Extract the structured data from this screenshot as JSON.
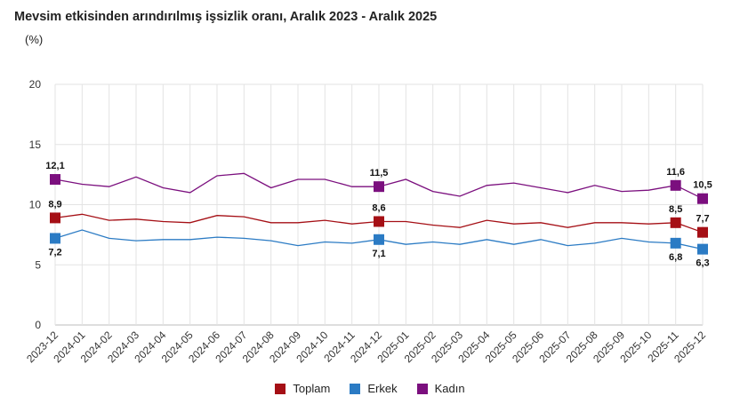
{
  "header": {
    "title": "Mevsim etkisinden arındırılmış işsizlik oranı, Aralık 2023 - Aralık 2025",
    "unit": "(%)"
  },
  "chart_data": {
    "type": "line",
    "title": "Mevsim etkisinden arındırılmış işsizlik oranı, Aralık 2023 - Aralık 2025",
    "ylabel": "(%)",
    "xlabel": "",
    "ylim": [
      0,
      20
    ],
    "yticks": [
      0,
      5,
      10,
      15,
      20
    ],
    "categories": [
      "2023-12",
      "2024-01",
      "2024-02",
      "2024-03",
      "2024-04",
      "2024-05",
      "2024-06",
      "2024-07",
      "2024-08",
      "2024-09",
      "2024-10",
      "2024-11",
      "2024-12",
      "2025-01",
      "2025-02",
      "2025-03",
      "2025-04",
      "2025-05",
      "2025-06",
      "2025-07",
      "2025-08",
      "2025-09",
      "2025-10",
      "2025-11",
      "2025-12"
    ],
    "series": [
      {
        "name": "Toplam",
        "color": "#a50f15",
        "values": [
          8.9,
          9.2,
          8.7,
          8.8,
          8.6,
          8.5,
          9.1,
          9.0,
          8.5,
          8.5,
          8.7,
          8.4,
          8.6,
          8.6,
          8.3,
          8.1,
          8.7,
          8.4,
          8.5,
          8.1,
          8.5,
          8.5,
          8.4,
          8.5,
          7.7
        ]
      },
      {
        "name": "Erkek",
        "color": "#2b7bc4",
        "values": [
          7.2,
          7.9,
          7.2,
          7.0,
          7.1,
          7.1,
          7.3,
          7.2,
          7.0,
          6.6,
          6.9,
          6.8,
          7.1,
          6.7,
          6.9,
          6.7,
          7.1,
          6.7,
          7.1,
          6.6,
          6.8,
          7.2,
          6.9,
          6.8,
          6.3
        ]
      },
      {
        "name": "Kadın",
        "color": "#7b0f7e",
        "values": [
          12.1,
          11.7,
          11.5,
          12.3,
          11.4,
          11.0,
          12.4,
          12.6,
          11.4,
          12.1,
          12.1,
          11.5,
          11.5,
          12.1,
          11.1,
          10.7,
          11.6,
          11.8,
          11.4,
          11.0,
          11.6,
          11.1,
          11.2,
          11.6,
          10.5
        ]
      }
    ],
    "annotations": [
      {
        "series": "Toplam",
        "category": "2023-12",
        "label": "8,9"
      },
      {
        "series": "Erkek",
        "category": "2023-12",
        "label": "7,2"
      },
      {
        "series": "Kadın",
        "category": "2023-12",
        "label": "12,1"
      },
      {
        "series": "Toplam",
        "category": "2024-12",
        "label": "8,6"
      },
      {
        "series": "Erkek",
        "category": "2024-12",
        "label": "7,1"
      },
      {
        "series": "Kadın",
        "category": "2024-12",
        "label": "11,5"
      },
      {
        "series": "Toplam",
        "category": "2025-11",
        "label": "8,5"
      },
      {
        "series": "Erkek",
        "category": "2025-11",
        "label": "6,8"
      },
      {
        "series": "Kadın",
        "category": "2025-11",
        "label": "11,6"
      },
      {
        "series": "Toplam",
        "category": "2025-12",
        "label": "7,7"
      },
      {
        "series": "Erkek",
        "category": "2025-12",
        "label": "6,3"
      },
      {
        "series": "Kadın",
        "category": "2025-12",
        "label": "10,5"
      }
    ],
    "legend": [
      "Toplam",
      "Erkek",
      "Kadın"
    ],
    "legend_position": "bottom-center",
    "grid": true
  }
}
